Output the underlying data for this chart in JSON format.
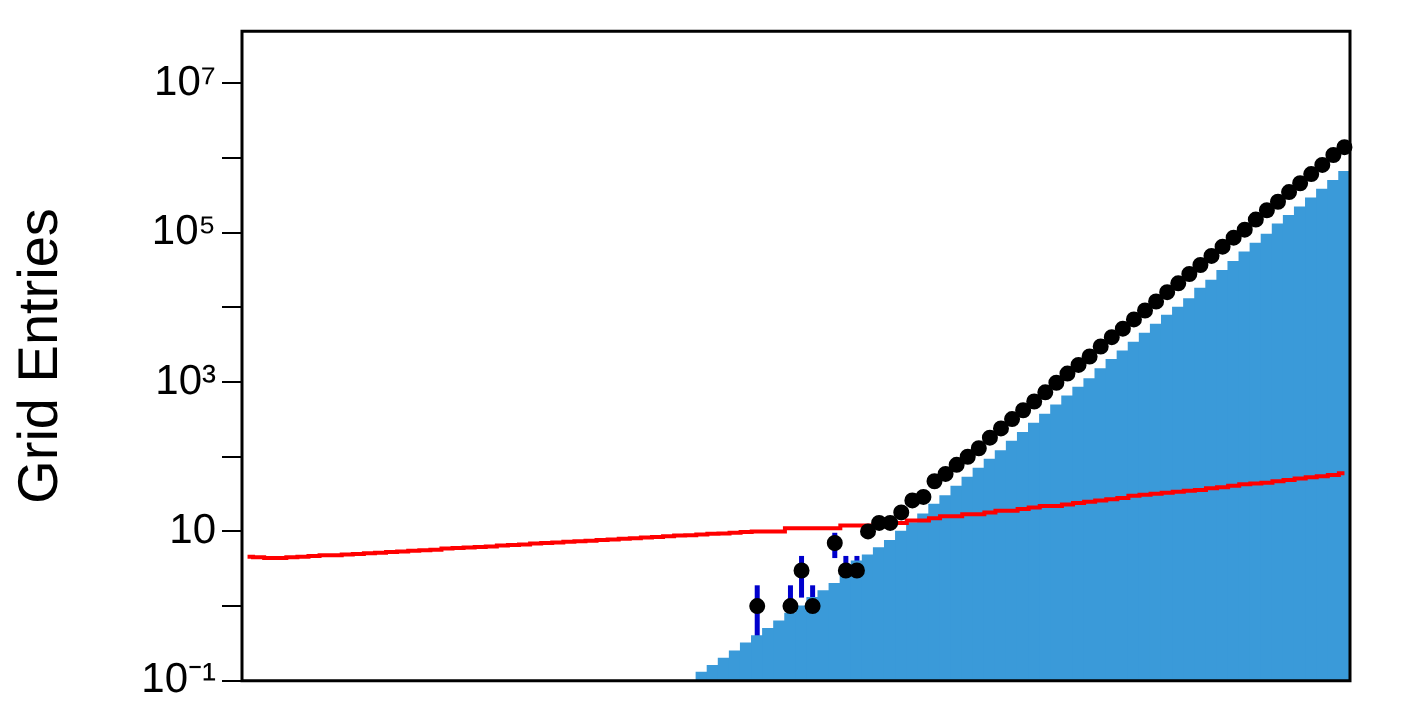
{
  "chart_data": {
    "type": "bar",
    "ylabel": "Grid Entries",
    "log": "y",
    "ylim": [
      0.1,
      50000000
    ],
    "yticks": [
      {
        "value": 0.1,
        "label": "10⁻¹"
      },
      {
        "value": 1,
        "label": null
      },
      {
        "value": 10,
        "label": "10"
      },
      {
        "value": 100,
        "label": null
      },
      {
        "value": 1000,
        "label": "10³"
      },
      {
        "value": 10000,
        "label": null
      },
      {
        "value": 100000,
        "label": "10⁵"
      },
      {
        "value": 1000000,
        "label": null
      },
      {
        "value": 10000000,
        "label": "10⁷"
      }
    ],
    "tick_labels": "y",
    "grid": false,
    "legend": false,
    "categories": [
      null,
      null,
      null,
      null,
      null,
      null,
      null,
      null,
      null,
      null,
      null,
      null,
      null,
      null,
      null,
      null,
      null,
      null,
      null,
      null,
      null,
      null,
      null,
      null,
      null,
      null,
      null,
      null,
      null,
      null,
      null,
      null,
      null,
      null,
      null,
      null,
      null,
      null,
      null,
      null,
      null,
      null,
      null,
      null,
      null,
      null,
      null,
      null,
      null,
      null,
      null,
      null,
      null,
      null,
      null,
      null,
      null,
      null,
      null,
      null,
      null,
      null,
      null,
      null,
      null,
      null,
      null,
      null,
      null,
      null,
      null,
      null,
      null,
      null,
      null,
      null,
      null,
      null,
      null,
      null,
      null,
      null,
      null,
      null,
      null,
      null,
      null,
      null,
      null,
      null,
      null,
      null,
      null,
      null,
      null,
      null,
      null,
      null,
      null,
      null
    ],
    "series": [
      {
        "color": "#3a9ad9",
        "values": [
          null,
          null,
          null,
          null,
          null,
          null,
          null,
          null,
          null,
          null,
          null,
          null,
          null,
          null,
          null,
          null,
          null,
          null,
          null,
          null,
          null,
          null,
          null,
          null,
          null,
          null,
          null,
          null,
          null,
          null,
          null,
          null,
          null,
          null,
          null,
          null,
          null,
          null,
          null,
          null,
          null,
          0.13,
          0.16,
          0.2,
          0.25,
          0.32,
          0.4,
          0.5,
          0.63,
          0.8,
          1.0,
          1.3,
          1.6,
          2.0,
          2.5,
          4.0,
          4.8,
          6.0,
          7.5,
          10,
          13,
          17,
          23,
          30,
          40,
          53,
          70,
          92,
          120,
          160,
          210,
          280,
          370,
          490,
          650,
          850,
          1100,
          1500,
          2000,
          2600,
          3400,
          4500,
          5900,
          7800,
          10000,
          13000,
          18000,
          23000,
          31000,
          41000,
          55000,
          72000,
          95000,
          130000,
          170000,
          220000,
          290000,
          380000,
          500000,
          660000
        ]
      },
      {
        "type": "step",
        "color": "#ff0000",
        "values": [
          4.6,
          4.5,
          4.4,
          4.4,
          4.5,
          4.6,
          4.7,
          4.8,
          4.8,
          4.9,
          5.0,
          5.1,
          5.2,
          5.3,
          5.4,
          5.5,
          5.6,
          5.7,
          5.9,
          6.0,
          6.1,
          6.2,
          6.3,
          6.5,
          6.6,
          6.7,
          6.9,
          7.0,
          7.1,
          7.3,
          7.4,
          7.5,
          7.7,
          7.8,
          8.0,
          8.1,
          8.3,
          8.4,
          8.6,
          8.8,
          8.9,
          9.1,
          9.3,
          9.4,
          9.6,
          9.8,
          10,
          10,
          10,
          11,
          11,
          11,
          11,
          11,
          12,
          12,
          12,
          12,
          13,
          13,
          14,
          14,
          15,
          16,
          16,
          17,
          17,
          18,
          19,
          19,
          20,
          21,
          22,
          22,
          23,
          24,
          25,
          26,
          27,
          28,
          30,
          31,
          32,
          33,
          34,
          35,
          36,
          38,
          39,
          41,
          43,
          44,
          45,
          47,
          49,
          51,
          53,
          55,
          57,
          60
        ]
      },
      {
        "type": "scatter",
        "color": "#000000",
        "marker": "circle",
        "values": [
          null,
          null,
          null,
          null,
          null,
          null,
          null,
          null,
          null,
          null,
          null,
          null,
          null,
          null,
          null,
          null,
          null,
          null,
          null,
          null,
          null,
          null,
          null,
          null,
          null,
          null,
          null,
          null,
          null,
          null,
          null,
          null,
          null,
          null,
          null,
          null,
          null,
          null,
          null,
          null,
          null,
          null,
          null,
          null,
          null,
          null,
          1,
          null,
          null,
          1,
          3,
          1,
          null,
          7,
          3,
          3,
          10,
          13,
          13,
          18,
          26,
          29,
          47,
          59,
          78,
          100,
          130,
          180,
          240,
          320,
          420,
          550,
          730,
          980,
          1300,
          1700,
          2200,
          3000,
          4000,
          5200,
          6900,
          9100,
          12000,
          16000,
          21000,
          28000,
          37000,
          49000,
          65000,
          86000,
          110000,
          150000,
          200000,
          260000,
          350000,
          460000,
          610000,
          810000,
          1100000,
          1400000
        ],
        "errors": [
          null,
          null,
          null,
          null,
          null,
          null,
          null,
          null,
          null,
          null,
          null,
          null,
          null,
          null,
          null,
          null,
          null,
          null,
          null,
          null,
          null,
          null,
          null,
          null,
          null,
          null,
          null,
          null,
          null,
          null,
          null,
          null,
          null,
          null,
          null,
          null,
          null,
          null,
          null,
          null,
          null,
          null,
          null,
          null,
          null,
          null,
          0.9,
          null,
          null,
          0.9,
          1.7,
          0.9,
          null,
          2.6,
          1.7,
          1.7,
          null,
          null,
          null,
          null,
          null,
          null,
          null,
          null,
          null,
          null,
          null,
          null,
          null,
          null,
          null,
          null,
          null,
          null,
          null,
          null,
          null,
          null,
          null,
          null,
          null,
          null,
          null,
          null,
          null,
          null,
          null,
          null,
          null,
          null,
          null,
          null,
          null,
          null,
          null,
          null,
          null,
          null,
          null,
          null
        ]
      }
    ]
  }
}
